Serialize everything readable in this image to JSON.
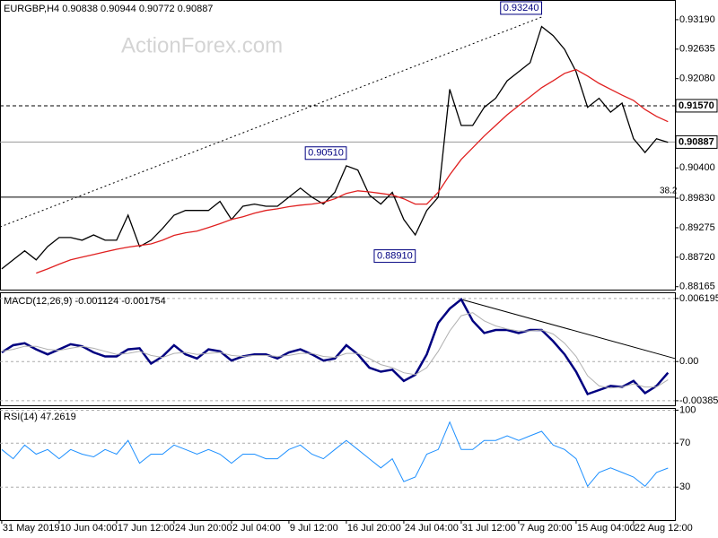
{
  "chart_data": [
    {
      "type": "line",
      "title": "EURGBP,H4  0.90838 0.90944 0.90772 0.90887",
      "watermark": "ActionForex.com",
      "xlim": [
        -0.15,
        58.6
      ],
      "ylim": [
        0.8811,
        0.9356
      ],
      "yticks": [
        {
          "value": 0.9319,
          "label": "0.93190"
        },
        {
          "value": 0.92635,
          "label": "0.92635"
        },
        {
          "value": 0.9208,
          "label": "0.92080"
        },
        {
          "value": 0.904,
          "label": "0.90400"
        },
        {
          "value": 0.8983,
          "label": "0.89830"
        },
        {
          "value": 0.89275,
          "label": "0.89275"
        },
        {
          "value": 0.8872,
          "label": "0.88720"
        },
        {
          "value": 0.88165,
          "label": "0.88165"
        }
      ],
      "series": [
        {
          "color": "#000000",
          "values": [
            0.885,
            0.8867,
            0.8884,
            0.8867,
            0.8892,
            0.8909,
            0.8909,
            0.8904,
            0.8914,
            0.8904,
            0.8904,
            0.8951,
            0.8892,
            0.8904,
            0.8926,
            0.8951,
            0.896,
            0.896,
            0.896,
            0.8977,
            0.8943,
            0.8968,
            0.8972,
            0.8968,
            0.8968,
            0.8985,
            0.9002,
            0.8985,
            0.8972,
            0.8994,
            0.9044,
            0.9036,
            0.8989,
            0.8972,
            0.8994,
            0.8943,
            0.8914,
            0.896,
            0.8985,
            0.9188,
            0.912,
            0.912,
            0.9154,
            0.9171,
            0.9204,
            0.9221,
            0.9238,
            0.9306,
            0.9289,
            0.9263,
            0.9221,
            0.9154,
            0.9171,
            0.9145,
            0.9162,
            0.9095,
            0.9069,
            0.9095,
            0.9088
          ]
        },
        {
          "color": "#e02020",
          "values": [
            null,
            null,
            null,
            0.8842,
            0.885,
            0.8859,
            0.8867,
            0.8872,
            0.8877,
            0.8882,
            0.8887,
            0.8891,
            0.8894,
            0.8897,
            0.8904,
            0.8913,
            0.8918,
            0.8921,
            0.8928,
            0.8935,
            0.8943,
            0.8948,
            0.8955,
            0.896,
            0.8963,
            0.8967,
            0.897,
            0.8972,
            0.8975,
            0.8982,
            0.8992,
            0.8997,
            0.8995,
            0.8992,
            0.8989,
            0.8982,
            0.8972,
            0.8972,
            0.8994,
            0.9027,
            0.9056,
            0.9078,
            0.91,
            0.912,
            0.914,
            0.9157,
            0.9174,
            0.9191,
            0.9204,
            0.9218,
            0.9225,
            0.9213,
            0.9199,
            0.9188,
            0.9177,
            0.9167,
            0.915,
            0.9137,
            0.9127
          ]
        }
      ],
      "levels": [
        {
          "value": 0.9157,
          "label": "0.91570",
          "style": "dashed"
        },
        {
          "value": 0.90887,
          "label": "0.90887",
          "style": "solid"
        }
      ],
      "fib": {
        "value": 0.8985,
        "ratio": 38.2
      },
      "annotations": [
        {
          "x": 47,
          "value": 0.9324,
          "label": "0.93240"
        },
        {
          "x": 30,
          "value": 0.9051,
          "label": "0.90510"
        },
        {
          "x": 36,
          "value": 0.8891,
          "label": "0.88910"
        }
      ],
      "trendline": {
        "x": [
          -0.15,
          47
        ],
        "values": [
          0.8929,
          0.9324
        ],
        "style": "dotted"
      }
    },
    {
      "type": "line",
      "title": "MACD(12,26,9) -0.001124 -0.001754",
      "xlim": [
        -0.15,
        58.6
      ],
      "ylim": [
        -0.0043,
        0.0068
      ],
      "yticks": [
        0.006195,
        {
          "value": 0,
          "label": "0.00"
        },
        -0.003851
      ],
      "grid": true,
      "series": [
        {
          "color": "#000080",
          "width": 2.5,
          "values": [
            0.0009,
            0.0016,
            0.0018,
            0.0012,
            0.0007,
            0.0012,
            0.0017,
            0.0015,
            0.0009,
            0.0005,
            0.0005,
            0.0012,
            0.0013,
            -0.0002,
            0.0005,
            0.0016,
            0.0007,
            0.0003,
            0.0012,
            0.001,
            0.0001,
            0.0005,
            0.0007,
            0.0007,
            0.0003,
            0.0009,
            0.0012,
            0.0007,
            0.0001,
            0.0003,
            0.0016,
            0.0007,
            -0.0006,
            -0.001,
            -0.0008,
            -0.0019,
            -0.0013,
            0.0007,
            0.0038,
            0.0052,
            0.0061,
            0.004,
            0.0028,
            0.0031,
            0.0031,
            0.0028,
            0.0031,
            0.0031,
            0.002,
            0.0007,
            -0.001,
            -0.0032,
            -0.0028,
            -0.0024,
            -0.0025,
            -0.0019,
            -0.0031,
            -0.0024,
            -0.0011
          ]
        },
        {
          "color": "#b0b0b0",
          "width": 1,
          "values": [
            0.001,
            0.0012,
            0.0015,
            0.0015,
            0.0012,
            0.0011,
            0.0013,
            0.0015,
            0.0013,
            0.001,
            0.0007,
            0.0008,
            0.001,
            0.0006,
            0.0004,
            0.0008,
            0.0009,
            0.0007,
            0.0008,
            0.0009,
            0.0006,
            0.0005,
            0.0006,
            0.0006,
            0.0005,
            0.0006,
            0.0008,
            0.0008,
            0.0005,
            0.0004,
            0.0008,
            0.0008,
            0.0003,
            -0.0003,
            -0.0006,
            -0.0011,
            -0.0013,
            -0.0006,
            0.001,
            0.003,
            0.0045,
            0.0048,
            0.004,
            0.0035,
            0.0032,
            0.003,
            0.003,
            0.0031,
            0.0027,
            0.0018,
            0.0005,
            -0.0014,
            -0.0024,
            -0.0026,
            -0.0025,
            -0.0022,
            -0.0025,
            -0.0025,
            -0.0018
          ]
        }
      ],
      "trendline": {
        "x": [
          40,
          58.6
        ],
        "values": [
          0.0061,
          0.0003
        ],
        "style": "solid"
      }
    },
    {
      "type": "line",
      "title": "RSI(14) 47.2619",
      "xlim": [
        -0.15,
        58.6
      ],
      "ylim": [
        0,
        102
      ],
      "yticks": [
        100,
        70,
        30
      ],
      "grid": true,
      "series": [
        {
          "color": "#1e90ff",
          "width": 1,
          "values": [
            64.2,
            55.8,
            68.3,
            60,
            64.2,
            55.8,
            64.2,
            60,
            57.5,
            64.2,
            60,
            72.5,
            51.7,
            60,
            60,
            68.3,
            64.2,
            60,
            64.2,
            60,
            51.7,
            60,
            60,
            55.8,
            55.8,
            64.2,
            68.3,
            60,
            55.8,
            64.2,
            72.5,
            64.2,
            55.8,
            47.5,
            55.8,
            35,
            39.2,
            60,
            64.2,
            89.2,
            64.2,
            64.2,
            72.5,
            72.5,
            76.7,
            72.5,
            76.7,
            80.8,
            68.3,
            64.2,
            55.8,
            30.8,
            43.3,
            47.5,
            43.3,
            39.2,
            30.8,
            43.3,
            47.3
          ]
        }
      ],
      "xticks": [
        {
          "value": 0,
          "label": "31 May 2019"
        },
        {
          "value": 5,
          "label": "10 Jun 04:00"
        },
        {
          "value": 10,
          "label": "17 Jun 12:00"
        },
        {
          "value": 15,
          "label": "24 Jun 20:00"
        },
        {
          "value": 20,
          "label": "2 Jul 04:00"
        },
        {
          "value": 25,
          "label": "9 Jul 12:00"
        },
        {
          "value": 30,
          "label": "16 Jul 20:00"
        },
        {
          "value": 35,
          "label": "24 Jul 04:00"
        },
        {
          "value": 40,
          "label": "31 Jul 12:00"
        },
        {
          "value": 45,
          "label": "7 Aug 20:00"
        },
        {
          "value": 50,
          "label": "15 Aug 04:00"
        },
        {
          "value": 55,
          "label": "22 Aug 12:00"
        }
      ]
    }
  ]
}
